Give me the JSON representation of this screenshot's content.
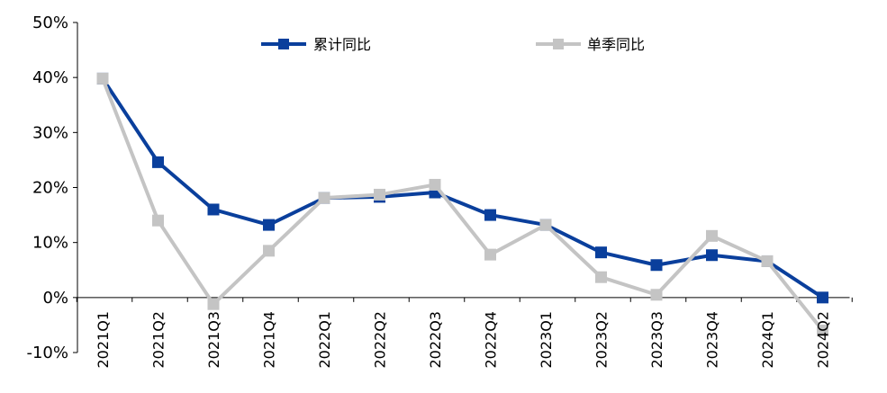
{
  "chart_data": {
    "type": "line",
    "title": "",
    "xlabel": "",
    "ylabel": "",
    "categories": [
      "2021Q1",
      "2021Q2",
      "2021Q3",
      "2021Q4",
      "2022Q1",
      "2022Q2",
      "2022Q3",
      "2022Q4",
      "2023Q1",
      "2023Q2",
      "2023Q3",
      "2023Q4",
      "2024Q1",
      "2024Q2"
    ],
    "ylim": [
      -10,
      50
    ],
    "yticks": [
      -10,
      0,
      10,
      20,
      30,
      40,
      50
    ],
    "ytick_labels": [
      "-10%",
      "0%",
      "10%",
      "20%",
      "30%",
      "40%",
      "50%"
    ],
    "grid": false,
    "legend_position": "top",
    "series": [
      {
        "name": "累计同比",
        "color": "#0A3F9C",
        "values": [
          39.8,
          24.6,
          16.0,
          13.2,
          18.1,
          18.3,
          19.1,
          15.0,
          13.2,
          8.2,
          5.9,
          7.7,
          6.6,
          0.0
        ]
      },
      {
        "name": "单季同比",
        "color": "#C4C4C4",
        "values": [
          39.8,
          14.0,
          -1.2,
          8.5,
          18.1,
          18.7,
          20.5,
          7.8,
          13.2,
          3.7,
          0.5,
          11.2,
          6.6,
          -6.0
        ]
      }
    ]
  }
}
